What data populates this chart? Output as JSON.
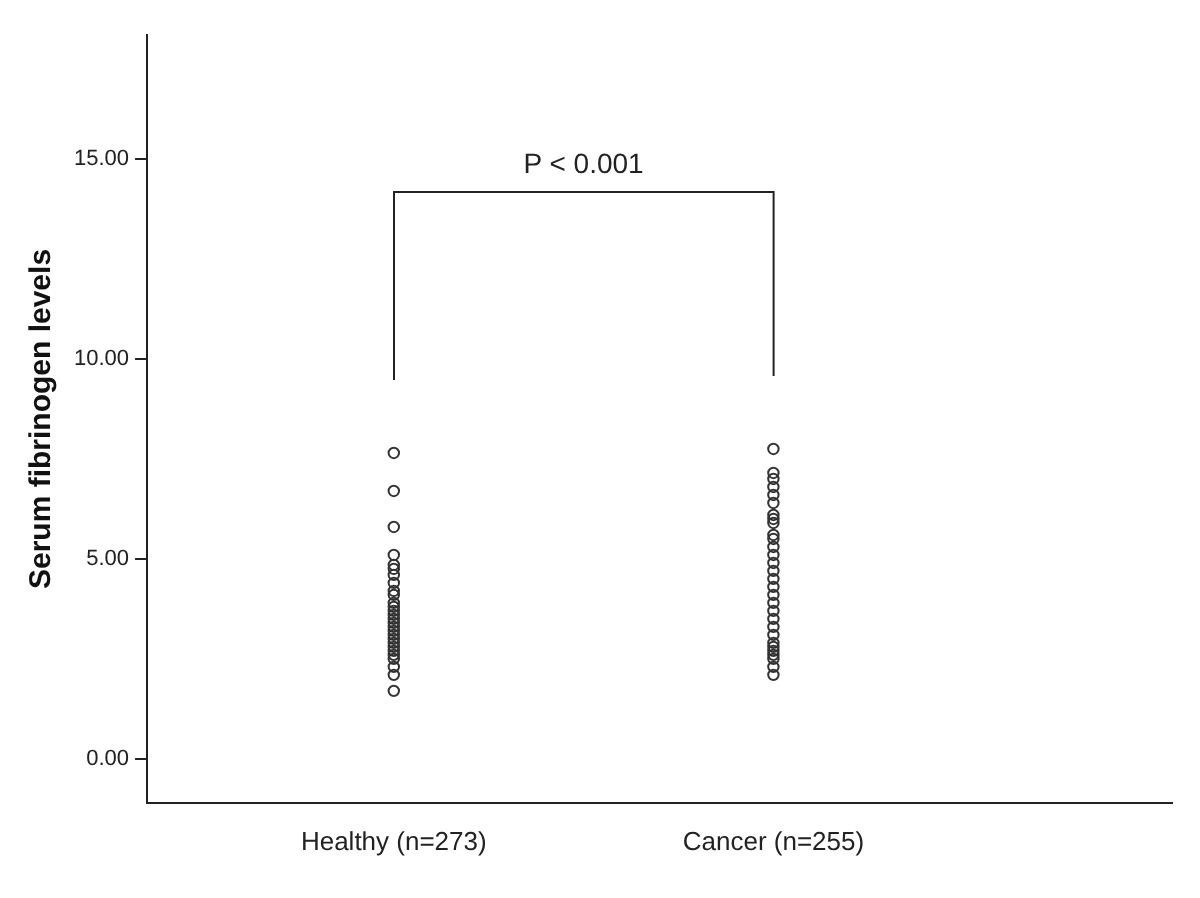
{
  "chart_data": {
    "type": "scatter",
    "ylabel": "Serum fibrinogen levels",
    "categories": [
      "Healthy (n=273)",
      "Cancer (n=255)"
    ],
    "ylim": [
      -1.1,
      18.1
    ],
    "yticks": [
      {
        "value": 0,
        "label": "0.00"
      },
      {
        "value": 5,
        "label": "5.00"
      },
      {
        "value": 10,
        "label": "10.00"
      },
      {
        "value": 15,
        "label": "15.00"
      }
    ],
    "grid": false,
    "legend": false,
    "marker": "circle",
    "annotations": [
      "P < 0.001"
    ],
    "series": [
      {
        "color": "#333333",
        "x": [
          "Healthy (n=273)",
          "Healthy (n=273)",
          "Healthy (n=273)",
          "Healthy (n=273)",
          "Healthy (n=273)",
          "Healthy (n=273)",
          "Healthy (n=273)",
          "Healthy (n=273)",
          "Healthy (n=273)",
          "Healthy (n=273)",
          "Healthy (n=273)",
          "Healthy (n=273)",
          "Healthy (n=273)",
          "Healthy (n=273)",
          "Healthy (n=273)",
          "Healthy (n=273)",
          "Healthy (n=273)",
          "Healthy (n=273)",
          "Healthy (n=273)",
          "Healthy (n=273)",
          "Healthy (n=273)",
          "Healthy (n=273)",
          "Healthy (n=273)",
          "Healthy (n=273)",
          "Healthy (n=273)",
          "Healthy (n=273)",
          "Healthy (n=273)",
          "Healthy (n=273)"
        ],
        "values": [
          7.65,
          6.7,
          5.8,
          5.1,
          4.85,
          4.75,
          4.6,
          4.4,
          4.2,
          4.1,
          3.9,
          3.8,
          3.7,
          3.6,
          3.5,
          3.4,
          3.3,
          3.2,
          3.1,
          3.0,
          2.9,
          2.8,
          2.7,
          2.6,
          2.5,
          2.3,
          2.1,
          1.7
        ]
      },
      {
        "color": "#333333",
        "x": [
          "Cancer (n=255)",
          "Cancer (n=255)",
          "Cancer (n=255)",
          "Cancer (n=255)",
          "Cancer (n=255)",
          "Cancer (n=255)",
          "Cancer (n=255)",
          "Cancer (n=255)",
          "Cancer (n=255)",
          "Cancer (n=255)",
          "Cancer (n=255)",
          "Cancer (n=255)",
          "Cancer (n=255)",
          "Cancer (n=255)",
          "Cancer (n=255)",
          "Cancer (n=255)",
          "Cancer (n=255)",
          "Cancer (n=255)",
          "Cancer (n=255)",
          "Cancer (n=255)",
          "Cancer (n=255)",
          "Cancer (n=255)",
          "Cancer (n=255)",
          "Cancer (n=255)",
          "Cancer (n=255)",
          "Cancer (n=255)",
          "Cancer (n=255)",
          "Cancer (n=255)",
          "Cancer (n=255)",
          "Cancer (n=255)"
        ],
        "values": [
          7.75,
          7.15,
          7.0,
          6.8,
          6.6,
          6.4,
          6.1,
          6.0,
          5.9,
          5.6,
          5.5,
          5.3,
          5.1,
          4.9,
          4.7,
          4.5,
          4.3,
          4.1,
          3.9,
          3.7,
          3.5,
          3.3,
          3.1,
          2.9,
          2.8,
          2.7,
          2.6,
          2.5,
          2.3,
          2.1
        ]
      }
    ]
  }
}
